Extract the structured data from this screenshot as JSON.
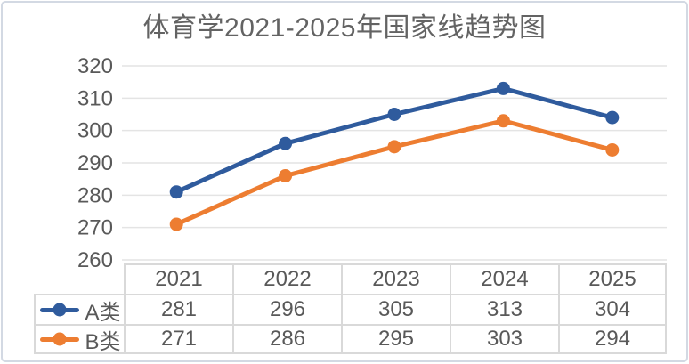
{
  "chart_data": {
    "type": "line",
    "title": "体育学2021-2025年国家线趋势图",
    "categories": [
      "2021",
      "2022",
      "2023",
      "2024",
      "2025"
    ],
    "series": [
      {
        "name": "A类",
        "color": "#2F5B9D",
        "values": [
          281,
          296,
          305,
          313,
          304
        ]
      },
      {
        "name": "B类",
        "color": "#ED7D31",
        "values": [
          271,
          286,
          295,
          303,
          294
        ]
      }
    ],
    "xlabel": "",
    "ylabel": "",
    "ylim": [
      260,
      320
    ],
    "yticks": [
      260,
      270,
      280,
      290,
      300,
      310,
      320
    ],
    "grid": true,
    "legend_position": "data-table-left",
    "data_table": true,
    "marker": "circle"
  },
  "colors": {
    "title": "#636363",
    "text": "#595959",
    "grid": "#e4e4e4",
    "table_border": "#d9d9d9",
    "frame_border": "#d3d9e3",
    "background": "#ffffff",
    "series_a": "#2F5B9D",
    "series_b": "#ED7D31"
  }
}
